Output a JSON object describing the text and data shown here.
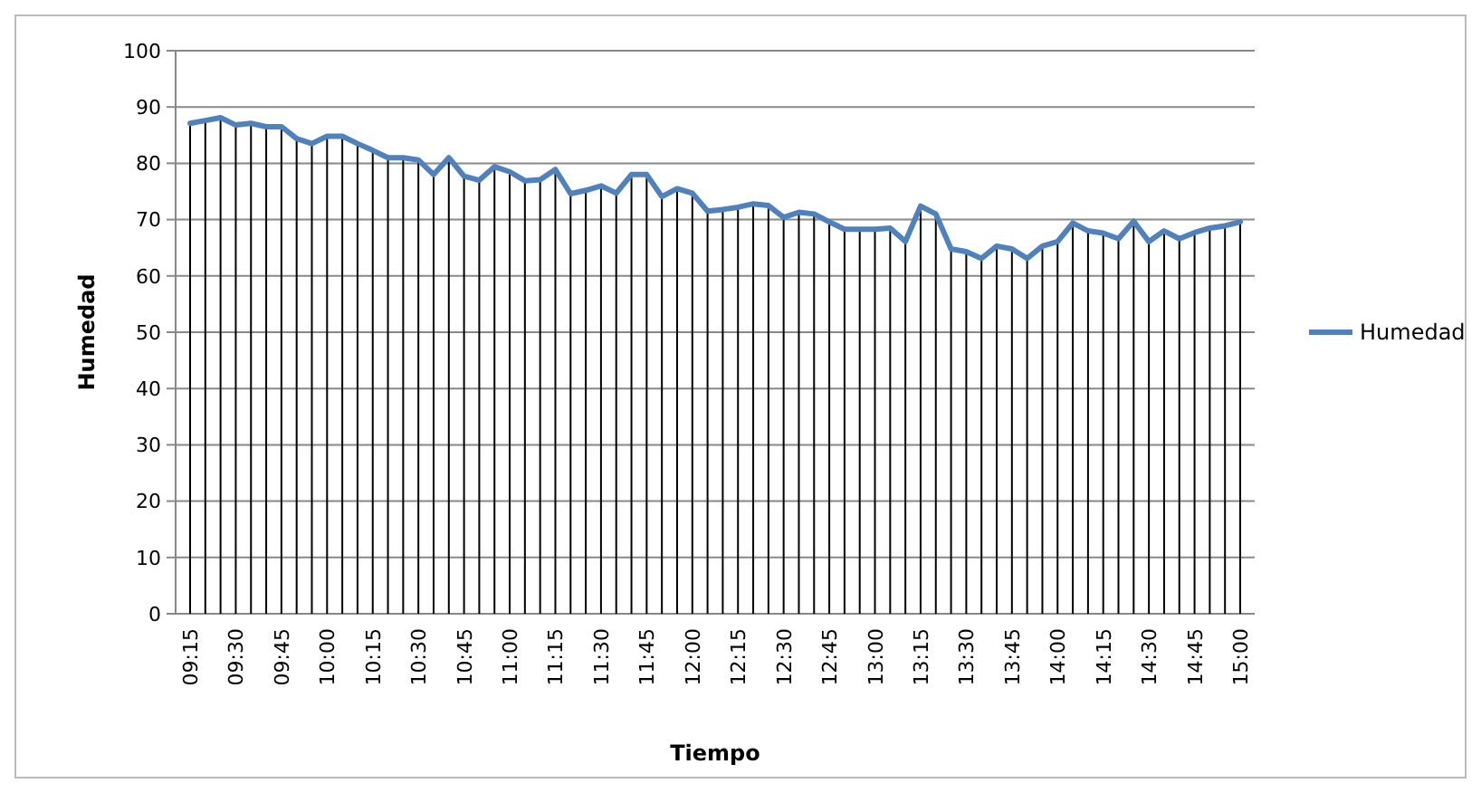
{
  "chart_data": {
    "type": "line",
    "xlabel": "Tiempo",
    "ylabel": "Humedad",
    "categories": [
      "09:15",
      null,
      null,
      "09:30",
      null,
      null,
      "09:45",
      null,
      null,
      "10:00",
      null,
      null,
      "10:15",
      null,
      null,
      "10:30",
      null,
      null,
      "10:45",
      null,
      null,
      "11:00",
      null,
      null,
      "11:15",
      null,
      null,
      "11:30",
      null,
      null,
      "11:45",
      null,
      null,
      "12:00",
      null,
      null,
      "12:15",
      null,
      null,
      "12:30",
      null,
      null,
      "12:45",
      null,
      null,
      "13:00",
      null,
      null,
      "13:15",
      null,
      null,
      "13:30",
      null,
      null,
      "13:45",
      null,
      null,
      "14:00",
      null,
      null,
      "14:15",
      null,
      null,
      "14:30",
      null,
      null,
      "14:45",
      null,
      null,
      "15:00"
    ],
    "series": [
      {
        "name": "Humedad",
        "color": "#4f81bd",
        "values": [
          87.1,
          87.6,
          88.1,
          86.8,
          87.1,
          86.5,
          86.5,
          84.4,
          83.5,
          84.8,
          84.8,
          83.5,
          82.3,
          81.0,
          81.0,
          80.6,
          78.0,
          81.0,
          77.7,
          77.0,
          79.4,
          78.5,
          76.9,
          77.1,
          78.9,
          74.6,
          75.2,
          76.0,
          74.7,
          78.0,
          78.0,
          74.1,
          75.5,
          74.7,
          71.5,
          71.8,
          72.2,
          72.8,
          72.5,
          70.4,
          71.3,
          71.0,
          69.6,
          68.3,
          68.3,
          68.3,
          68.5,
          66.1,
          72.4,
          71.0,
          64.8,
          64.3,
          63.1,
          65.3,
          64.8,
          63.1,
          65.3,
          66.1,
          69.4,
          68.0,
          67.6,
          66.6,
          69.7,
          66.1,
          68.0,
          66.6,
          67.7,
          68.5,
          68.9,
          69.6
        ]
      }
    ],
    "ylim": [
      0,
      100
    ],
    "yticks": [
      0,
      10,
      20,
      30,
      40,
      50,
      60,
      70,
      80,
      90,
      100
    ],
    "grid": true,
    "legend": "right",
    "marker": "none",
    "line_style": "solid"
  }
}
